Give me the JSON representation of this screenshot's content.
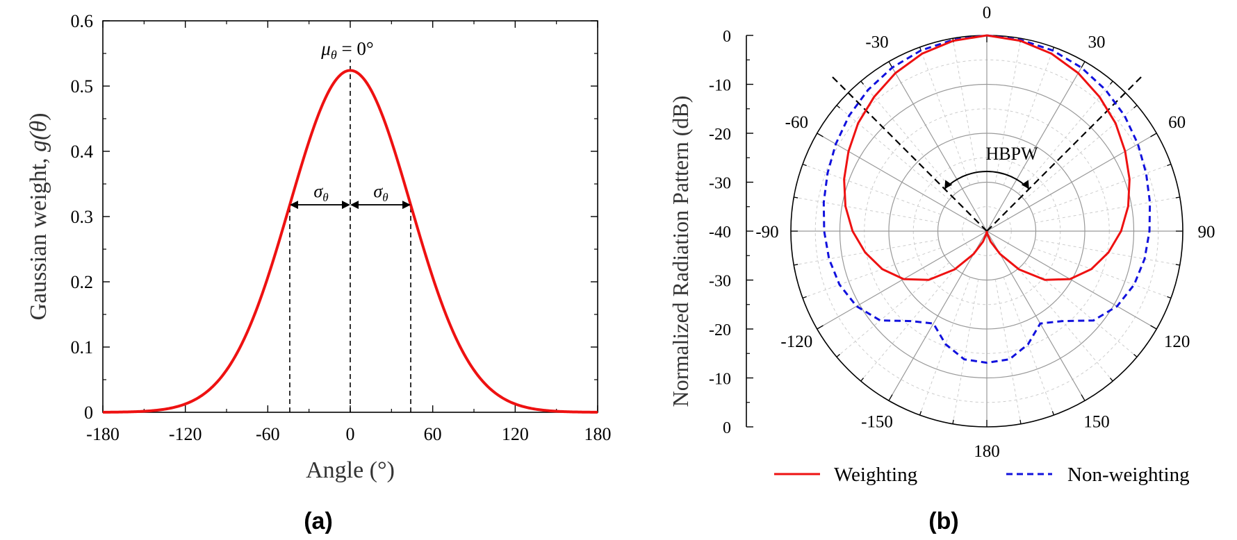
{
  "panels": {
    "a": {
      "label": "(a)"
    },
    "b": {
      "label": "(b)"
    }
  },
  "colors": {
    "weighting": "#ee1111",
    "non_weighting": "#1111dd",
    "axis": "#000000",
    "grid_major": "#999999",
    "grid_minor": "#cccccc"
  },
  "chart_data": [
    {
      "id": "gaussian",
      "type": "line",
      "title": "",
      "xlabel": "Angle (°)",
      "ylabel_prefix": "Gaussian weight, ",
      "ylabel_func": "g(",
      "ylabel_var": "θ",
      "ylabel_close": ")",
      "xlim": [
        -180,
        180
      ],
      "ylim": [
        0,
        0.6
      ],
      "xticks": [
        -180,
        -120,
        -60,
        0,
        60,
        120,
        180
      ],
      "yticks": [
        0,
        0.1,
        0.2,
        0.3,
        0.4,
        0.5,
        0.6
      ],
      "xtick_labels": [
        "-180",
        "-120",
        "-60",
        "0",
        "60",
        "120",
        "180"
      ],
      "ytick_labels": [
        "0",
        "0.1",
        "0.2",
        "0.3",
        "0.4",
        "0.5",
        "0.6"
      ],
      "series": [
        {
          "name": "Gaussian weight",
          "mu": 0,
          "sigma": 44,
          "peak": 0.524
        }
      ],
      "annotations": {
        "mean_label_var": "μ",
        "mean_label_sub": "θ",
        "mean_label_rest": " = 0°",
        "sigma_var": "σ",
        "sigma_sub": "θ",
        "sigma_left": [
          -44,
          0
        ],
        "sigma_right": [
          0,
          44
        ],
        "sigma_y": 0.318
      }
    },
    {
      "id": "radiation",
      "type": "polar",
      "ylabel": "Normalized Radiation Pattern (dB)",
      "radial_ticks": [
        0,
        -10,
        -20,
        -30,
        -40,
        -30,
        -20,
        -10,
        0
      ],
      "radial_tick_labels": [
        "0",
        "-10",
        "-20",
        "-30",
        "-40",
        "-30",
        "-20",
        "-10",
        "0"
      ],
      "radial_range_db": [
        -40,
        0
      ],
      "angle_ticks": [
        0,
        30,
        60,
        90,
        120,
        150,
        180,
        -150,
        -120,
        -90,
        -60,
        -30
      ],
      "angle_tick_labels": [
        "0",
        "30",
        "60",
        "90",
        "120",
        "150",
        "180",
        "-150",
        "-120",
        "-90",
        "-60",
        "-30"
      ],
      "hbpw_label": "HBPW",
      "hbpw_angles": [
        -45,
        45
      ],
      "legend": [
        "Weighting",
        "Non-weighting"
      ],
      "series": [
        {
          "name": "Weighting",
          "angles": [
            0,
            10,
            20,
            30,
            40,
            50,
            60,
            70,
            80,
            90,
            100,
            110,
            120,
            130,
            140,
            150,
            160,
            170,
            180
          ],
          "db": [
            0,
            -0.5,
            -1.4,
            -2.7,
            -4.2,
            -5.7,
            -7.4,
            -9.0,
            -10.7,
            -12.6,
            -14.8,
            -17.3,
            -20.4,
            -24.5,
            -29.8,
            -34.6,
            -37.7,
            -39.4,
            -40
          ]
        },
        {
          "name": "Non-weighting",
          "angles": [
            0,
            10,
            20,
            30,
            40,
            50,
            60,
            70,
            80,
            90,
            100,
            110,
            120,
            130,
            140,
            150,
            160,
            170,
            180
          ],
          "db": [
            0,
            -0.3,
            -0.7,
            -1.4,
            -2.3,
            -3.3,
            -4.4,
            -5.4,
            -6.2,
            -6.8,
            -7.3,
            -8.0,
            -9.3,
            -11.6,
            -16.0,
            -18.2,
            -15.4,
            -13.4,
            -13.1
          ]
        }
      ]
    }
  ]
}
